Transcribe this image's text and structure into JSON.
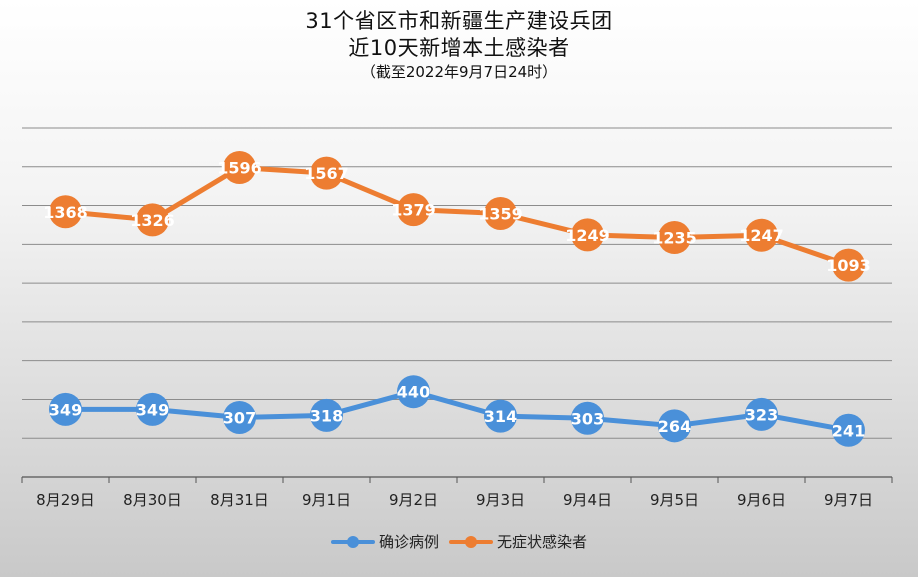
{
  "chart_data": {
    "type": "line",
    "title_lines": [
      "31个省区市和新疆生产建设兵团",
      "近10天新增本土感染者"
    ],
    "subtitle": "（截至2022年9月7日24时）",
    "categories": [
      "8月29日",
      "8月30日",
      "8月31日",
      "9月1日",
      "9月2日",
      "9月3日",
      "9月4日",
      "9月5日",
      "9月6日",
      "9月7日"
    ],
    "series": [
      {
        "name": "确诊病例",
        "color": "#4a90d9",
        "values": [
          349,
          349,
          307,
          318,
          440,
          314,
          303,
          264,
          323,
          241
        ]
      },
      {
        "name": "无症状感染者",
        "color": "#ed7d31",
        "values": [
          1368,
          1326,
          1596,
          1567,
          1379,
          1359,
          1249,
          1235,
          1247,
          1093
        ]
      }
    ],
    "ylim": [
      0,
      1800
    ],
    "y_axis_labels_shown": false,
    "grid": true,
    "legend_position": "bottom"
  }
}
